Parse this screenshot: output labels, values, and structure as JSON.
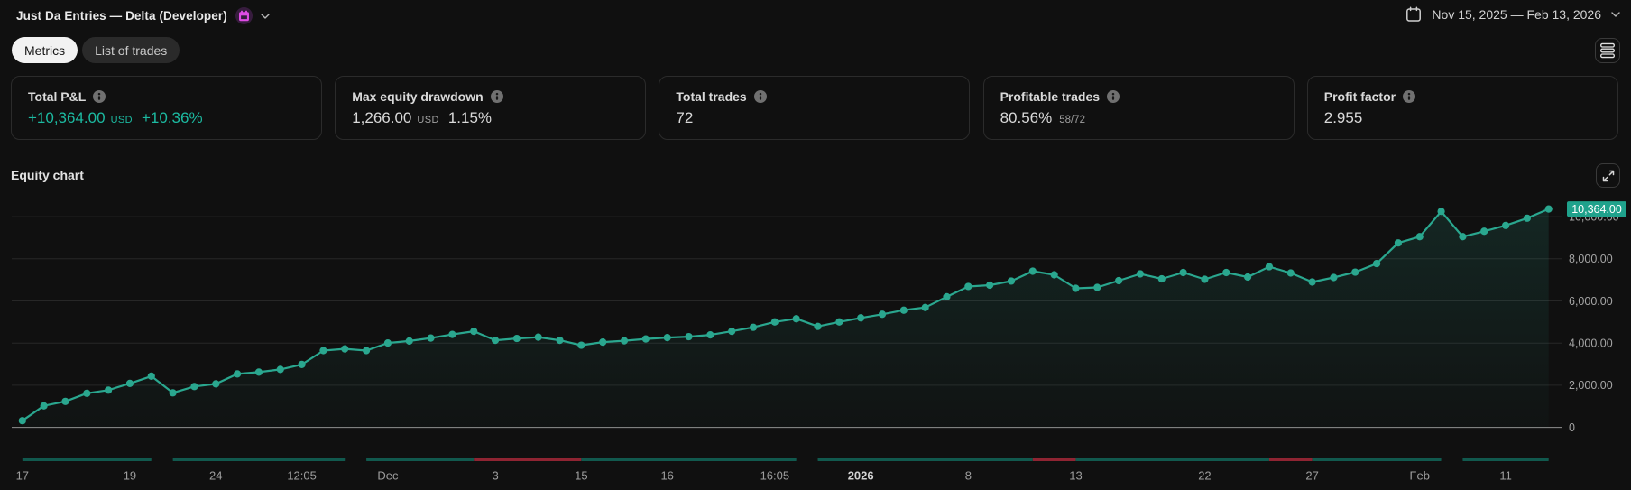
{
  "header": {
    "title": "Just Da Entries — Delta (Developer)",
    "strategy_icon": "calendar-badge",
    "date_range": "Nov 15, 2025 — Feb 13, 2026"
  },
  "tabs": [
    {
      "label": "Metrics",
      "active": true
    },
    {
      "label": "List of trades",
      "active": false
    }
  ],
  "cards": [
    {
      "label": "Total P&L",
      "value": "+10,364.00",
      "unit": "USD",
      "pct": "+10.36%",
      "sub": "",
      "accent": "positive"
    },
    {
      "label": "Max equity drawdown",
      "value": "1,266.00",
      "unit": "USD",
      "pct": "1.15%",
      "sub": "",
      "accent": "neutral"
    },
    {
      "label": "Total trades",
      "value": "72",
      "unit": "",
      "pct": "",
      "sub": "",
      "accent": "neutral"
    },
    {
      "label": "Profitable trades",
      "value": "80.56%",
      "unit": "",
      "pct": "",
      "sub": "58/72",
      "accent": "neutral"
    },
    {
      "label": "Profit factor",
      "value": "2.955",
      "unit": "",
      "pct": "",
      "sub": "",
      "accent": "neutral"
    }
  ],
  "chart_section": {
    "title": "Equity chart"
  },
  "chart_data": {
    "type": "line",
    "title": "Equity chart",
    "ylabel": "",
    "xlabel": "",
    "ylim": [
      0,
      10500
    ],
    "grid": true,
    "last_value_label": "10,364.00",
    "values": [
      317,
      1023,
      1233,
      1619,
      1769,
      2086,
      2428,
      1640,
      1940,
      2064,
      2535,
      2621,
      2749,
      2985,
      3645,
      3726,
      3645,
      4004,
      4100,
      4240,
      4410,
      4560,
      4133,
      4219,
      4280,
      4133,
      3898,
      4047,
      4111,
      4197,
      4261,
      4306,
      4390,
      4560,
      4750,
      5004,
      5155,
      4792,
      5004,
      5197,
      5368,
      5562,
      5690,
      6198,
      6687,
      6751,
      6944,
      7412,
      7242,
      6601,
      6644,
      6965,
      7285,
      7049,
      7349,
      7028,
      7349,
      7135,
      7624,
      7328,
      6900,
      7114,
      7367,
      7774,
      8754,
      9051,
      10250,
      9051,
      9307,
      9584,
      9927,
      10364
    ],
    "y_ticks": [
      {
        "value": 0,
        "label": "0"
      },
      {
        "value": 2000,
        "label": "2,000.00"
      },
      {
        "value": 4000,
        "label": "4,000.00"
      },
      {
        "value": 6000,
        "label": "6,000.00"
      },
      {
        "value": 8000,
        "label": "8,000.00"
      },
      {
        "value": 10000,
        "label": "10,000.00"
      }
    ],
    "x_labels": [
      {
        "index": 0,
        "text": "17"
      },
      {
        "index": 5,
        "text": "19"
      },
      {
        "index": 9,
        "text": "24"
      },
      {
        "index": 13,
        "text": "12:05"
      },
      {
        "index": 17,
        "text": "Dec"
      },
      {
        "index": 22,
        "text": "3"
      },
      {
        "index": 26,
        "text": "15"
      },
      {
        "index": 30,
        "text": "16"
      },
      {
        "index": 35,
        "text": "16:05"
      },
      {
        "index": 39,
        "text": "2026",
        "bold": true
      },
      {
        "index": 44,
        "text": "8"
      },
      {
        "index": 49,
        "text": "13"
      },
      {
        "index": 55,
        "text": "22"
      },
      {
        "index": 60,
        "text": "27"
      },
      {
        "index": 65,
        "text": "Feb"
      },
      {
        "index": 69,
        "text": "11"
      }
    ],
    "session_bars": [
      {
        "from": 0,
        "to": 6,
        "result": "profit"
      },
      {
        "from": 7,
        "to": 15,
        "result": "profit"
      },
      {
        "from": 16,
        "to": 21,
        "result": "profit"
      },
      {
        "from": 21,
        "to": 26,
        "result": "loss"
      },
      {
        "from": 26,
        "to": 36,
        "result": "profit"
      },
      {
        "from": 37,
        "to": 47,
        "result": "profit"
      },
      {
        "from": 47,
        "to": 49,
        "result": "loss"
      },
      {
        "from": 49,
        "to": 58,
        "result": "profit"
      },
      {
        "from": 58,
        "to": 60,
        "result": "loss"
      },
      {
        "from": 60,
        "to": 66,
        "result": "profit"
      },
      {
        "from": 67,
        "to": 71,
        "result": "profit"
      }
    ],
    "colors": {
      "line": "#2aa78f",
      "badge": "#1fa28c",
      "profit_bar": "#11594e",
      "loss_bar": "#8f2432"
    }
  }
}
